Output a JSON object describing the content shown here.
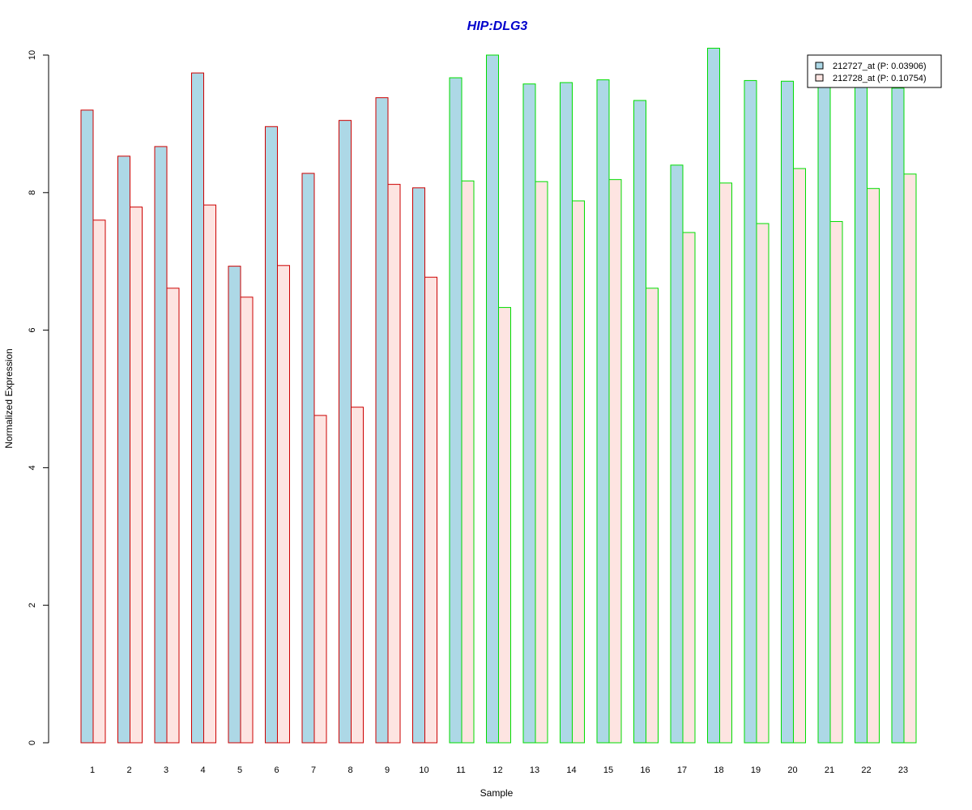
{
  "chart_data": {
    "type": "bar",
    "title": "HIP:DLG3",
    "xlabel": "Sample",
    "ylabel": "Normalized Expression",
    "ylim": [
      0,
      10
    ],
    "yticks": [
      "0",
      "2",
      "4",
      "6",
      "8",
      "10"
    ],
    "grid": false,
    "legend_position": "top-right",
    "categories": [
      "1",
      "2",
      "3",
      "4",
      "5",
      "6",
      "7",
      "8",
      "9",
      "10",
      "11",
      "12",
      "13",
      "14",
      "15",
      "16",
      "17",
      "18",
      "19",
      "20",
      "21",
      "22",
      "23"
    ],
    "series": [
      {
        "name": "212727_at (P: 0.03906)",
        "values": [
          9.2,
          8.53,
          8.67,
          9.74,
          6.93,
          8.96,
          8.28,
          9.05,
          9.38,
          8.07,
          9.67,
          10.0,
          9.58,
          9.6,
          9.64,
          9.34,
          8.4,
          10.1,
          9.63,
          9.62,
          9.55,
          9.55,
          9.52
        ]
      },
      {
        "name": "212728_at (P: 0.10754)",
        "values": [
          7.6,
          7.79,
          6.61,
          7.82,
          6.48,
          6.94,
          4.76,
          4.88,
          8.12,
          6.77,
          8.17,
          6.33,
          8.16,
          7.88,
          8.19,
          6.61,
          7.42,
          8.14,
          7.55,
          8.35,
          7.58,
          8.06,
          8.27
        ]
      }
    ],
    "groups": [
      {
        "samples": [
          "1",
          "2",
          "3",
          "4",
          "5",
          "6",
          "7",
          "8",
          "9",
          "10"
        ],
        "border_color": "#cc0000"
      },
      {
        "samples": [
          "11",
          "12",
          "13",
          "14",
          "15",
          "16",
          "17",
          "18",
          "19",
          "20",
          "21",
          "22",
          "23"
        ],
        "border_color": "#00dd00"
      }
    ],
    "colors": {
      "series_fill": [
        "#add8e6",
        "#fde4e1"
      ],
      "title": "#0000cc"
    }
  }
}
